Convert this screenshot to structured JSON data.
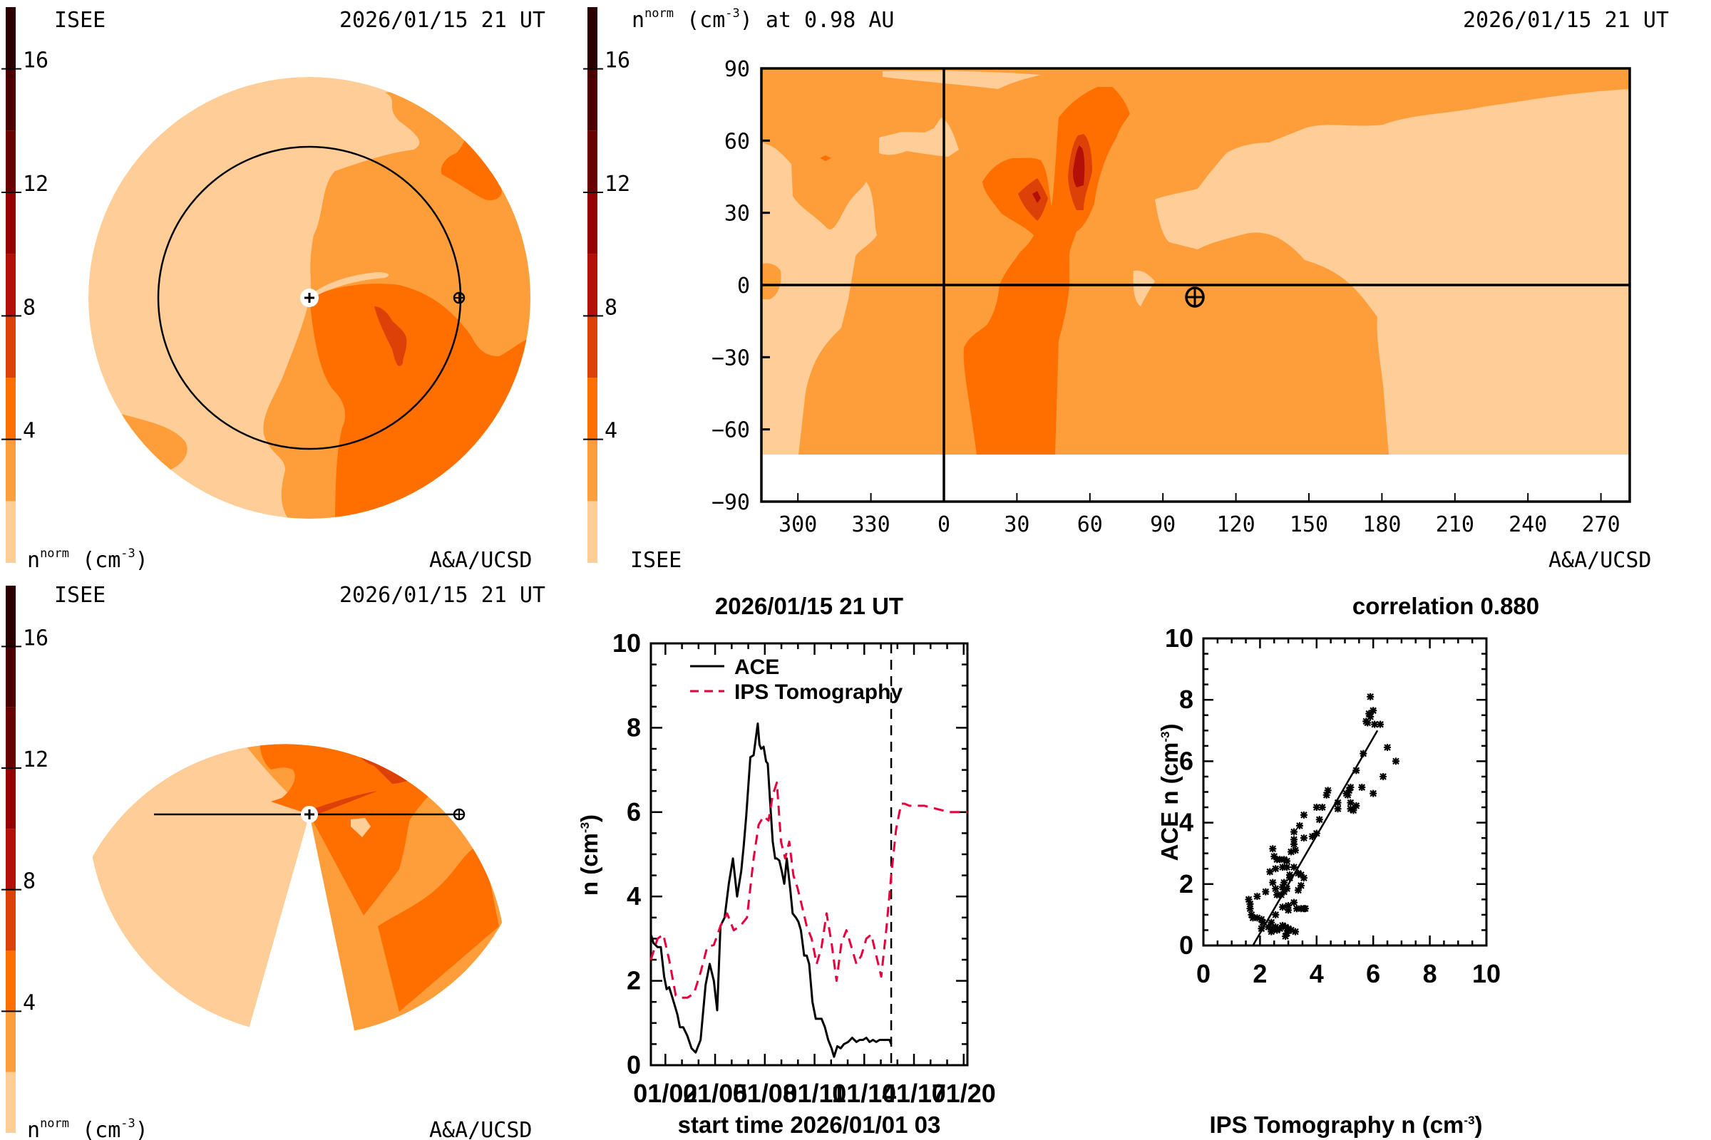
{
  "colorscale": {
    "levels": [
      0,
      2,
      4,
      6,
      8,
      10,
      12,
      14,
      16,
      18
    ],
    "colors": [
      "#FECD98",
      "#FD9E3A",
      "#FF6F00",
      "#DD4108",
      "#B51008",
      "#960000",
      "#6A0000",
      "#4A0000",
      "#2A0000"
    ],
    "ticks": [
      "4",
      "8",
      "12",
      "16"
    ],
    "tick_values": [
      4,
      8,
      12,
      16
    ]
  },
  "panel_top_left": {
    "source_label": "ISEE",
    "timestamp": "2026/01/15 21 UT",
    "unit_label_base": "n",
    "unit_label_sup": "norm",
    "unit_label_tail": " (cm",
    "unit_label_exp": "-3",
    "unit_label_close": ")",
    "credit": "A&A/UCSD",
    "view": "ecliptic"
  },
  "panel_top_right": {
    "title_base": "n",
    "title_sup": "norm",
    "title_unit": " (cm",
    "title_exp": "-3",
    "title_tail": ") at 0.98 AU",
    "timestamp": "2026/01/15 21 UT",
    "source_label": "ISEE",
    "credit": "A&A/UCSD",
    "y_ticks": [
      "90",
      "60",
      "30",
      "0",
      "−30",
      "−60",
      "−90"
    ],
    "x_ticks": [
      "300",
      "330",
      "0",
      "30",
      "60",
      "90",
      "120",
      "150",
      "180",
      "210",
      "240",
      "270"
    ],
    "earth_longitude": 104,
    "earth_latitude": -4
  },
  "panel_bottom_left": {
    "source_label": "ISEE",
    "timestamp": "2026/01/15 21 UT",
    "unit_label_base": "n",
    "unit_label_sup": "norm",
    "unit_label_tail": " (cm",
    "unit_label_exp": "-3",
    "unit_label_close": ")",
    "credit": "A&A/UCSD",
    "view": "meridional"
  },
  "chart_data": [
    {
      "type": "line",
      "title": "2026/01/15 21 UT",
      "xlabel": "start time 2026/01/01 03",
      "ylabel_base": "n (cm",
      "ylabel_exp": "-3",
      "ylabel_close": ")",
      "ylim": [
        0,
        10
      ],
      "xlim_days": [
        0,
        19.1
      ],
      "y_ticks": [
        0,
        2,
        4,
        6,
        8,
        10
      ],
      "x_tick_labels": [
        "01/02",
        "01/05",
        "01/08",
        "01/11",
        "01/14",
        "01/17",
        "01/20"
      ],
      "x_tick_days": [
        0.875,
        3.875,
        6.875,
        9.875,
        12.875,
        15.875,
        18.875
      ],
      "now_marker_day": 14.5,
      "legend_position": "top-left",
      "series": [
        {
          "name": "ACE",
          "color": "#000000",
          "style": "solid",
          "x": [
            0.0,
            0.15,
            0.4,
            0.6,
            0.8,
            0.95,
            1.1,
            1.3,
            1.45,
            1.6,
            1.75,
            1.95,
            2.2,
            2.45,
            2.7,
            3.0,
            3.3,
            3.55,
            3.8,
            4.0,
            4.2,
            4.45,
            4.7,
            4.95,
            5.2,
            5.45,
            5.6,
            5.75,
            6.0,
            6.2,
            6.45,
            6.55,
            6.65,
            6.8,
            6.95,
            7.05,
            7.2,
            7.35,
            7.5,
            7.6,
            7.75,
            7.9,
            8.05,
            8.2,
            8.4,
            8.55,
            8.75,
            8.9,
            9.05,
            9.25,
            9.4,
            9.55,
            9.75,
            9.95,
            10.1,
            10.3,
            10.5,
            10.7,
            10.9,
            11.05,
            11.25,
            11.45,
            11.65,
            11.9,
            12.15,
            12.4,
            12.6,
            12.8,
            13.0,
            13.2,
            13.4,
            13.6,
            13.8,
            14.0,
            14.2,
            14.4,
            14.5
          ],
          "y": [
            3.1,
            2.9,
            2.8,
            2.8,
            2.1,
            1.8,
            1.85,
            1.6,
            1.4,
            1.2,
            0.9,
            0.9,
            0.7,
            0.4,
            0.3,
            0.6,
            1.9,
            2.4,
            2.0,
            1.3,
            3.3,
            3.5,
            4.3,
            4.9,
            4.0,
            4.6,
            5.2,
            5.9,
            7.3,
            7.35,
            8.1,
            7.6,
            7.5,
            7.55,
            7.2,
            7.15,
            6.2,
            5.3,
            4.9,
            4.9,
            4.85,
            4.6,
            4.3,
            4.9,
            4.2,
            3.6,
            3.5,
            3.4,
            3.2,
            2.6,
            2.6,
            2.4,
            1.5,
            1.1,
            1.1,
            1.1,
            0.9,
            0.6,
            0.4,
            0.2,
            0.45,
            0.4,
            0.5,
            0.55,
            0.65,
            0.55,
            0.6,
            0.6,
            0.65,
            0.55,
            0.6,
            0.55,
            0.6,
            0.6,
            0.6,
            0.6,
            0.5
          ]
        },
        {
          "name": "IPS Tomography",
          "color": "#E8003D",
          "style": "dashed",
          "x": [
            0.0,
            0.4,
            0.75,
            1.1,
            1.5,
            1.8,
            2.2,
            2.6,
            3.0,
            3.4,
            3.8,
            4.2,
            4.6,
            5.0,
            5.4,
            5.8,
            6.2,
            6.5,
            6.8,
            7.1,
            7.35,
            7.6,
            7.85,
            8.1,
            8.35,
            8.6,
            8.85,
            9.1,
            9.4,
            9.7,
            10.0,
            10.3,
            10.6,
            10.9,
            11.2,
            11.5,
            11.8,
            12.1,
            12.4,
            12.7,
            13.0,
            13.3,
            13.6,
            13.9,
            14.2,
            14.5,
            14.8,
            15.1,
            15.3,
            15.6,
            16.0,
            16.5,
            17.0,
            17.5,
            18.0,
            18.5,
            19.1
          ],
          "y": [
            2.5,
            3.0,
            3.1,
            2.5,
            1.65,
            1.6,
            1.6,
            1.7,
            2.2,
            2.8,
            2.85,
            3.3,
            3.6,
            3.2,
            3.3,
            3.5,
            4.9,
            5.7,
            5.9,
            5.8,
            6.4,
            6.7,
            5.3,
            4.9,
            5.3,
            4.5,
            4.2,
            3.8,
            3.3,
            3.0,
            2.4,
            2.8,
            3.6,
            2.9,
            2.0,
            2.9,
            3.2,
            2.8,
            2.4,
            2.6,
            3.0,
            3.1,
            2.6,
            2.1,
            3.2,
            4.5,
            5.6,
            6.2,
            6.2,
            6.15,
            6.15,
            6.15,
            6.1,
            6.05,
            6.0,
            6.0,
            6.0
          ]
        }
      ]
    },
    {
      "type": "scatter",
      "title": "correlation 0.880",
      "xlabel_base": "IPS Tomography n (cm",
      "xlabel_exp": "-3",
      "xlabel_close": ")",
      "ylabel_base": "ACE n (cm",
      "ylabel_exp": "-3",
      "ylabel_close": ")",
      "xlim": [
        0,
        10
      ],
      "ylim": [
        0,
        10
      ],
      "x_ticks": [
        0,
        2,
        4,
        6,
        8,
        10
      ],
      "y_ticks": [
        0,
        2,
        4,
        6,
        8,
        10
      ],
      "correlation": 0.88,
      "fit_line": {
        "x": [
          1.75,
          6.15
        ],
        "y": [
          0,
          7.0
        ]
      },
      "points": [
        [
          5.9,
          8.1
        ],
        [
          6.0,
          7.65
        ],
        [
          5.85,
          7.55
        ],
        [
          5.9,
          7.45
        ],
        [
          5.75,
          7.3
        ],
        [
          5.8,
          7.25
        ],
        [
          6.05,
          7.2
        ],
        [
          6.25,
          7.2
        ],
        [
          6.5,
          6.45
        ],
        [
          6.8,
          6.0
        ],
        [
          5.65,
          6.25
        ],
        [
          5.4,
          5.7
        ],
        [
          6.35,
          5.5
        ],
        [
          5.6,
          5.15
        ],
        [
          6.0,
          4.95
        ],
        [
          5.2,
          5.15
        ],
        [
          5.15,
          5.05
        ],
        [
          5.05,
          4.95
        ],
        [
          5.1,
          4.9
        ],
        [
          5.2,
          4.65
        ],
        [
          5.4,
          4.55
        ],
        [
          5.3,
          4.4
        ],
        [
          5.2,
          4.45
        ],
        [
          4.75,
          4.65
        ],
        [
          4.75,
          4.45
        ],
        [
          4.4,
          5.05
        ],
        [
          4.35,
          4.9
        ],
        [
          4.2,
          4.5
        ],
        [
          4.0,
          4.5
        ],
        [
          4.1,
          4.1
        ],
        [
          4.0,
          3.65
        ],
        [
          3.85,
          3.55
        ],
        [
          3.55,
          4.25
        ],
        [
          3.55,
          3.5
        ],
        [
          3.4,
          3.9
        ],
        [
          3.2,
          3.7
        ],
        [
          3.2,
          3.45
        ],
        [
          3.2,
          3.3
        ],
        [
          3.25,
          3.1
        ],
        [
          3.1,
          3.05
        ],
        [
          2.45,
          3.15
        ],
        [
          2.5,
          2.9
        ],
        [
          2.6,
          2.8
        ],
        [
          2.7,
          2.8
        ],
        [
          2.85,
          2.8
        ],
        [
          2.95,
          2.75
        ],
        [
          2.8,
          2.55
        ],
        [
          2.95,
          2.55
        ],
        [
          3.2,
          2.55
        ],
        [
          2.55,
          2.5
        ],
        [
          2.35,
          2.4
        ],
        [
          3.05,
          2.3
        ],
        [
          3.05,
          2.2
        ],
        [
          3.35,
          2.35
        ],
        [
          3.45,
          2.3
        ],
        [
          3.55,
          2.2
        ],
        [
          3.45,
          1.95
        ],
        [
          3.35,
          1.8
        ],
        [
          2.85,
          2.05
        ],
        [
          2.8,
          1.9
        ],
        [
          2.95,
          1.85
        ],
        [
          2.85,
          1.75
        ],
        [
          2.75,
          1.65
        ],
        [
          2.55,
          1.85
        ],
        [
          2.6,
          1.65
        ],
        [
          2.45,
          2.05
        ],
        [
          2.2,
          1.75
        ],
        [
          1.9,
          1.6
        ],
        [
          1.6,
          1.5
        ],
        [
          1.65,
          1.35
        ],
        [
          1.65,
          1.2
        ],
        [
          1.7,
          1.0
        ],
        [
          1.75,
          0.9
        ],
        [
          1.9,
          0.9
        ],
        [
          2.05,
          0.85
        ],
        [
          2.1,
          0.75
        ],
        [
          2.4,
          0.75
        ],
        [
          2.55,
          1.0
        ],
        [
          2.8,
          1.25
        ],
        [
          3.0,
          1.3
        ],
        [
          3.0,
          1.15
        ],
        [
          3.2,
          1.4
        ],
        [
          3.3,
          1.2
        ],
        [
          3.45,
          1.2
        ],
        [
          3.55,
          1.2
        ],
        [
          3.6,
          1.2
        ],
        [
          2.05,
          0.55
        ],
        [
          2.3,
          0.6
        ],
        [
          2.45,
          0.55
        ],
        [
          2.55,
          0.6
        ],
        [
          2.7,
          0.55
        ],
        [
          2.8,
          0.65
        ],
        [
          2.9,
          0.6
        ],
        [
          3.0,
          0.55
        ],
        [
          3.1,
          0.5
        ],
        [
          3.25,
          0.45
        ],
        [
          2.9,
          0.3
        ],
        [
          2.95,
          0.4
        ],
        [
          2.6,
          0.5
        ],
        [
          2.4,
          0.45
        ]
      ]
    }
  ]
}
